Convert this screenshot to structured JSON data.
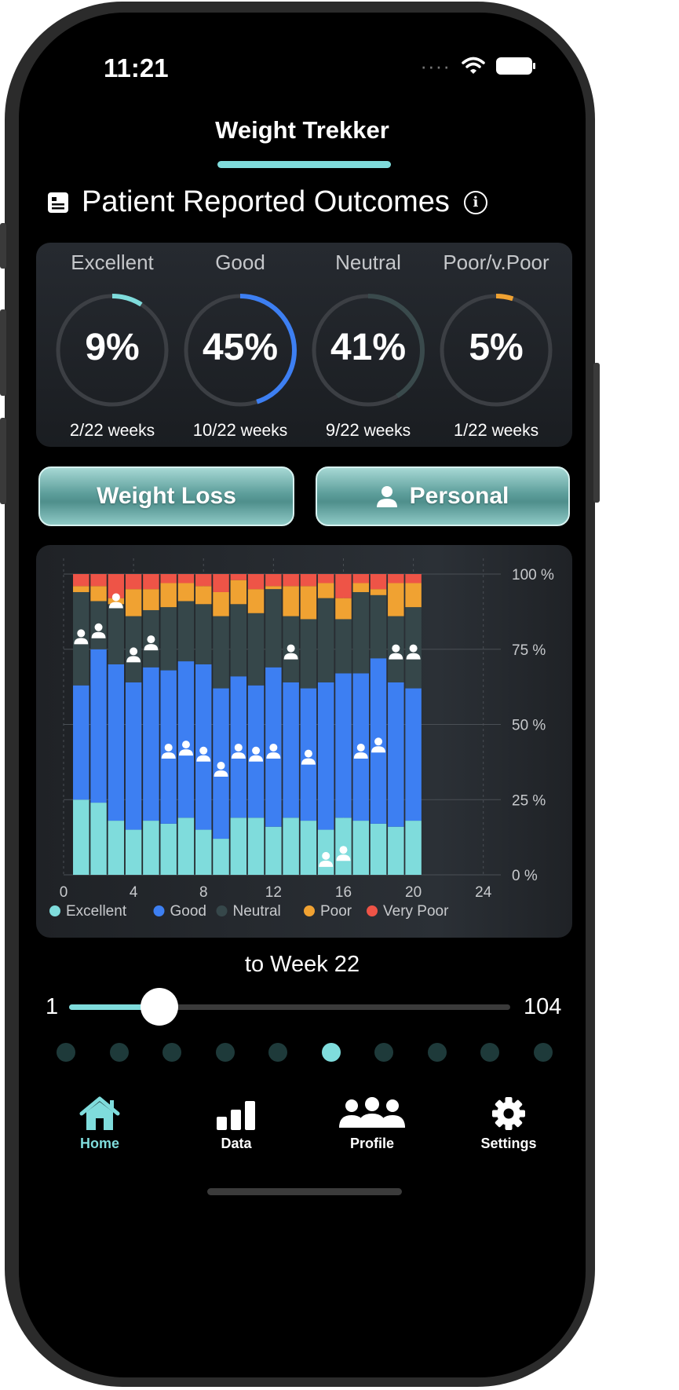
{
  "status_bar": {
    "time": "11:21"
  },
  "header": {
    "title": "Weight Trekker"
  },
  "section": {
    "title": "Patient Reported Outcomes"
  },
  "summary": [
    {
      "label": "Excellent",
      "percent_text": "9%",
      "fraction": 0.09,
      "weeks": "2/22",
      "unit": " weeks",
      "color": "#7fdcdc"
    },
    {
      "label": "Good",
      "percent_text": "45%",
      "fraction": 0.45,
      "weeks": "10/22",
      "unit": " weeks",
      "color": "#3d7ff2"
    },
    {
      "label": "Neutral",
      "percent_text": "41%",
      "fraction": 0.41,
      "weeks": "9/22",
      "unit": " weeks",
      "color": "#3a4a4c"
    },
    {
      "label": "Poor/v.Poor",
      "percent_text": "5%",
      "fraction": 0.05,
      "weeks": "1/22",
      "unit": " weeks",
      "color": "#f0a232"
    }
  ],
  "buttons": {
    "weight_loss": "Weight Loss",
    "personal": "Personal"
  },
  "chart_data": {
    "type": "bar",
    "stacked": true,
    "x": [
      1,
      2,
      3,
      4,
      5,
      6,
      7,
      8,
      9,
      10,
      11,
      12,
      13,
      14,
      15,
      16,
      17,
      18,
      19,
      20
    ],
    "series": [
      {
        "name": "Excellent",
        "color": "#7fdcdc",
        "values": [
          25,
          24,
          18,
          15,
          18,
          17,
          19,
          15,
          12,
          19,
          19,
          16,
          19,
          18,
          15,
          19,
          18,
          17,
          16,
          18
        ]
      },
      {
        "name": "Good",
        "color": "#3d7ff2",
        "values": [
          38,
          51,
          52,
          49,
          51,
          51,
          52,
          55,
          50,
          47,
          44,
          53,
          45,
          44,
          49,
          48,
          49,
          55,
          48,
          44
        ]
      },
      {
        "name": "Neutral",
        "color": "#36474a",
        "values": [
          31,
          16,
          20,
          22,
          19,
          21,
          20,
          20,
          24,
          24,
          24,
          26,
          22,
          23,
          28,
          18,
          27,
          21,
          22,
          27
        ]
      },
      {
        "name": "Poor",
        "color": "#f0a232",
        "values": [
          2,
          5,
          2,
          9,
          7,
          8,
          6,
          6,
          8,
          8,
          8,
          1,
          10,
          11,
          5,
          7,
          3,
          2,
          11,
          8
        ]
      },
      {
        "name": "Very Poor",
        "color": "#ee5447",
        "values": [
          4,
          4,
          8,
          5,
          5,
          3,
          3,
          4,
          6,
          2,
          5,
          4,
          4,
          4,
          3,
          8,
          3,
          5,
          3,
          3
        ]
      }
    ],
    "markers": [
      {
        "x": 1,
        "y": 79
      },
      {
        "x": 2,
        "y": 81
      },
      {
        "x": 3,
        "y": 91
      },
      {
        "x": 4,
        "y": 73
      },
      {
        "x": 5,
        "y": 77
      },
      {
        "x": 6,
        "y": 41
      },
      {
        "x": 7,
        "y": 42
      },
      {
        "x": 8,
        "y": 40
      },
      {
        "x": 9,
        "y": 35
      },
      {
        "x": 10,
        "y": 41
      },
      {
        "x": 11,
        "y": 40
      },
      {
        "x": 12,
        "y": 41
      },
      {
        "x": 13,
        "y": 74
      },
      {
        "x": 14,
        "y": 39
      },
      {
        "x": 15,
        "y": 5
      },
      {
        "x": 16,
        "y": 7
      },
      {
        "x": 17,
        "y": 41
      },
      {
        "x": 18,
        "y": 43
      },
      {
        "x": 19,
        "y": 74
      },
      {
        "x": 20,
        "y": 74
      }
    ],
    "xlim": [
      0,
      25
    ],
    "x_ticks": [
      0,
      4,
      8,
      12,
      16,
      20,
      24
    ],
    "ylim": [
      0,
      100
    ],
    "y_ticks": [
      "0 %",
      "25 %",
      "50 %",
      "75 %",
      "100 %"
    ],
    "legend": [
      "Excellent",
      "Good",
      "Neutral",
      "Poor",
      "Very Poor"
    ],
    "legend_position": "bottom-left"
  },
  "slider": {
    "label": "to Week 22",
    "min": "1",
    "max": "104",
    "value": 22
  },
  "page_dots": {
    "count": 10,
    "active": 5
  },
  "tabs": [
    {
      "label": "Home",
      "icon": "home-icon",
      "active": true
    },
    {
      "label": "Data",
      "icon": "bar-chart-icon",
      "active": false
    },
    {
      "label": "Profile",
      "icon": "group-icon",
      "active": false
    },
    {
      "label": "Settings",
      "icon": "gear-icon",
      "active": false
    }
  ]
}
